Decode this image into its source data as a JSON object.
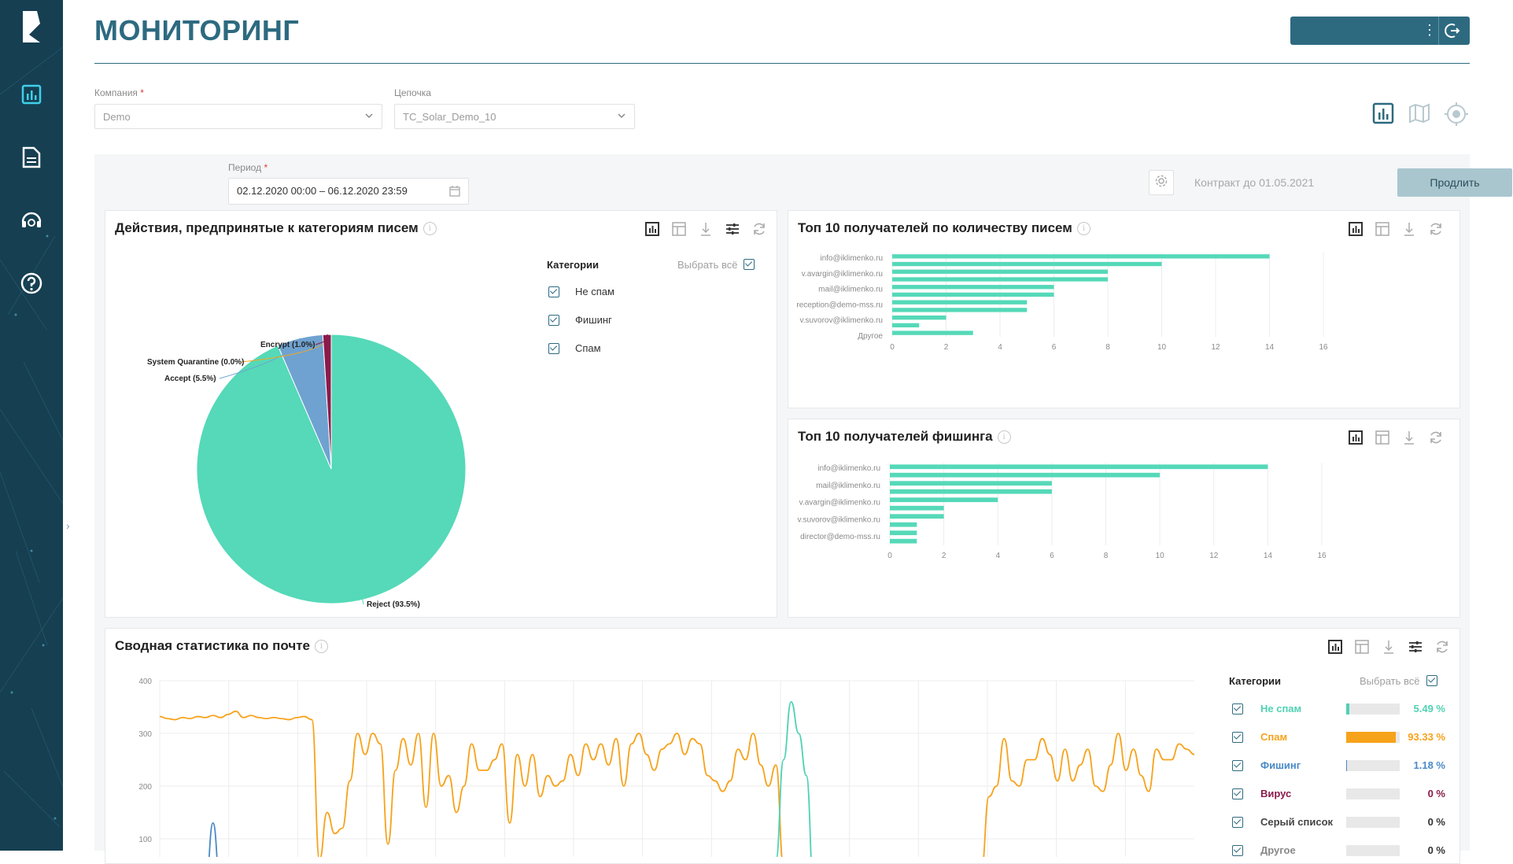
{
  "header": {
    "title": "МОНИТОРИНГ"
  },
  "filters": {
    "company_label": "Компания",
    "company_value": "Demo",
    "chain_label": "Цепочка",
    "chain_value": "TC_Solar_Demo_10",
    "period_label": "Период",
    "period_value": "02.12.2020 00:00 – 06.12.2020 23:59",
    "contract_text": "Контракт до 01.05.2021",
    "extend_label": "Продлить",
    "required_mark": "*"
  },
  "panels": {
    "actions": {
      "title": "Действия, предпринятые к категориям писем",
      "categories_header": "Категории",
      "select_all": "Выбрать всё",
      "categories": [
        "Не спам",
        "Фишинг",
        "Спам"
      ]
    },
    "top_recipients": {
      "title": "Топ 10 получателей по количеству писем"
    },
    "top_phishing": {
      "title": "Топ 10 получателей фишинга"
    },
    "summary": {
      "title": "Сводная статистика по почте",
      "categories_header": "Категории",
      "select_all": "Выбрать всё",
      "legend": [
        {
          "name": "Не спам",
          "pct": "5.49 %",
          "fraction": 0.0549,
          "color": "#4fd2b3"
        },
        {
          "name": "Спам",
          "pct": "93.33 %",
          "fraction": 0.9333,
          "color": "#f7a21b"
        },
        {
          "name": "Фишинг",
          "pct": "1.18 %",
          "fraction": 0.0118,
          "color": "#4a8ac6"
        },
        {
          "name": "Вирус",
          "pct": "0 %",
          "fraction": 0,
          "color": "#8b1a4a"
        },
        {
          "name": "Серый список",
          "pct": "0 %",
          "fraction": 0,
          "color": "#444444"
        },
        {
          "name": "Другое",
          "pct": "0 %",
          "fraction": 0,
          "color": "#888888"
        }
      ]
    }
  },
  "chart_data": [
    {
      "type": "pie",
      "slices": [
        {
          "label": "Reject (93.5%)",
          "value": 93.5,
          "color": "#55d9b8"
        },
        {
          "label": "Accept (5.5%)",
          "value": 5.5,
          "color": "#6fa2d0"
        },
        {
          "label": "System Quarantine (0.0%)",
          "value": 0.0,
          "color": "#f5a623"
        },
        {
          "label": "Encrypt (1.0%)",
          "value": 1.0,
          "color": "#8b1a4a"
        }
      ]
    },
    {
      "type": "bar",
      "orientation": "horizontal",
      "categories_shown": [
        "info@iklimenko.ru",
        "v.avargin@iklimenko.ru",
        "mail@iklimenko.ru",
        "reception@demo-mss.ru",
        "v.suvorov@iklimenko.ru",
        "Другое"
      ],
      "values": [
        14,
        10,
        8,
        8,
        6,
        6,
        5,
        5,
        2,
        1,
        3
      ],
      "xticks": [
        "0",
        "2",
        "4",
        "6",
        "8",
        "10",
        "12",
        "14",
        "16"
      ],
      "xlim": [
        0,
        16
      ],
      "color": "#55d9b8"
    },
    {
      "type": "bar",
      "orientation": "horizontal",
      "categories_shown": [
        "info@iklimenko.ru",
        "mail@iklimenko.ru",
        "v.avargin@iklimenko.ru",
        "v.suvorov@iklimenko.ru",
        "director@demo-mss.ru"
      ],
      "values": [
        14,
        10,
        6,
        6,
        4,
        2,
        2,
        1,
        1,
        1
      ],
      "xticks": [
        "0",
        "2",
        "4",
        "6",
        "8",
        "10",
        "12",
        "14",
        "16"
      ],
      "xlim": [
        0,
        16
      ],
      "color": "#55d9b8"
    },
    {
      "type": "line",
      "yticks": [
        "400",
        "300",
        "200",
        "100"
      ],
      "ylim": [
        0,
        400
      ],
      "series": [
        {
          "name": "Спам",
          "color": "#f7a21b",
          "values": [
            332,
            328,
            326,
            330,
            328,
            332,
            330,
            334,
            330,
            336,
            342,
            330,
            334,
            330,
            328,
            330,
            328,
            326,
            330,
            332,
            326,
            60,
            150,
            110,
            120,
            210,
            300,
            260,
            300,
            280,
            90,
            230,
            290,
            240,
            300,
            160,
            300,
            200,
            220,
            150,
            200,
            280,
            230,
            230,
            250,
            280,
            130,
            260,
            200,
            260,
            180,
            220,
            200,
            210,
            260,
            220,
            280,
            250,
            280,
            240,
            290,
            200,
            280,
            300,
            260,
            230,
            270,
            280,
            300,
            260,
            290,
            280,
            220,
            210,
            190,
            210,
            270,
            250,
            300,
            240,
            200,
            240,
            50,
            0,
            0,
            0,
            0,
            0,
            0,
            0,
            0,
            0,
            0,
            0,
            0,
            0,
            0,
            0,
            0,
            0,
            0,
            0,
            0,
            0,
            0,
            0,
            0,
            0,
            40,
            180,
            200,
            290,
            210,
            200,
            250,
            250,
            290,
            260,
            210,
            270,
            210,
            240,
            270,
            200,
            190,
            240,
            300,
            230,
            270,
            220,
            190,
            270,
            250,
            250,
            280,
            270,
            260
          ]
        },
        {
          "name": "Не спам",
          "color": "#4fd2b3",
          "values": [
            0,
            0,
            0,
            0,
            0,
            0,
            0,
            0,
            0,
            0,
            0,
            0,
            0,
            0,
            0,
            0,
            0,
            0,
            0,
            0,
            0,
            0,
            0,
            0,
            0,
            0,
            0,
            0,
            0,
            0,
            0,
            0,
            0,
            0,
            0,
            0,
            0,
            0,
            0,
            0,
            0,
            0,
            0,
            0,
            0,
            0,
            0,
            0,
            0,
            0,
            0,
            0,
            0,
            0,
            0,
            0,
            0,
            0,
            0,
            0,
            0,
            0,
            0,
            0,
            0,
            0,
            0,
            0,
            0,
            0,
            0,
            0,
            0,
            0,
            0,
            0,
            0,
            0,
            0,
            0,
            0,
            60,
            250,
            360,
            300,
            220,
            0,
            0,
            0,
            0,
            0,
            0,
            0,
            0,
            0,
            0,
            0,
            0,
            0,
            0,
            0,
            0,
            0,
            0,
            0,
            0,
            0,
            0,
            0,
            0,
            0,
            0,
            0,
            0,
            0,
            0,
            0,
            0,
            0,
            0,
            0,
            0,
            0,
            0,
            0,
            0,
            0,
            0,
            0,
            0,
            0,
            0,
            0,
            0,
            0,
            0,
            0
          ]
        },
        {
          "name": "Фишинг",
          "color": "#4a8ac6",
          "values": [
            0,
            0,
            0,
            0,
            0,
            0,
            0,
            130,
            10,
            0,
            0,
            0,
            0,
            0,
            0,
            0,
            0,
            0,
            0,
            0,
            0,
            0,
            0,
            0,
            0,
            0,
            0,
            0,
            0,
            0,
            0,
            0,
            0,
            0,
            0,
            0,
            0,
            0,
            0,
            0,
            0,
            0,
            0,
            0,
            0,
            0,
            0,
            0,
            0,
            0,
            0,
            0,
            0,
            0,
            0,
            0,
            0,
            0,
            0,
            0,
            0,
            0,
            0,
            0,
            0,
            0,
            0,
            0,
            0,
            0,
            0,
            0,
            0,
            0,
            0,
            0,
            0,
            0,
            0,
            0,
            0,
            0,
            0,
            0,
            0,
            0,
            0,
            0,
            0,
            0,
            0,
            0,
            0,
            0,
            0,
            0,
            0,
            0,
            0,
            0,
            0,
            0,
            0,
            0,
            0,
            0,
            0,
            0,
            0,
            0,
            0,
            0,
            0,
            0,
            0,
            0,
            0,
            0,
            0,
            0,
            0,
            0,
            0,
            0,
            0,
            0,
            0,
            0,
            0,
            0,
            0,
            0,
            0,
            0,
            0,
            0,
            0
          ]
        }
      ]
    }
  ]
}
